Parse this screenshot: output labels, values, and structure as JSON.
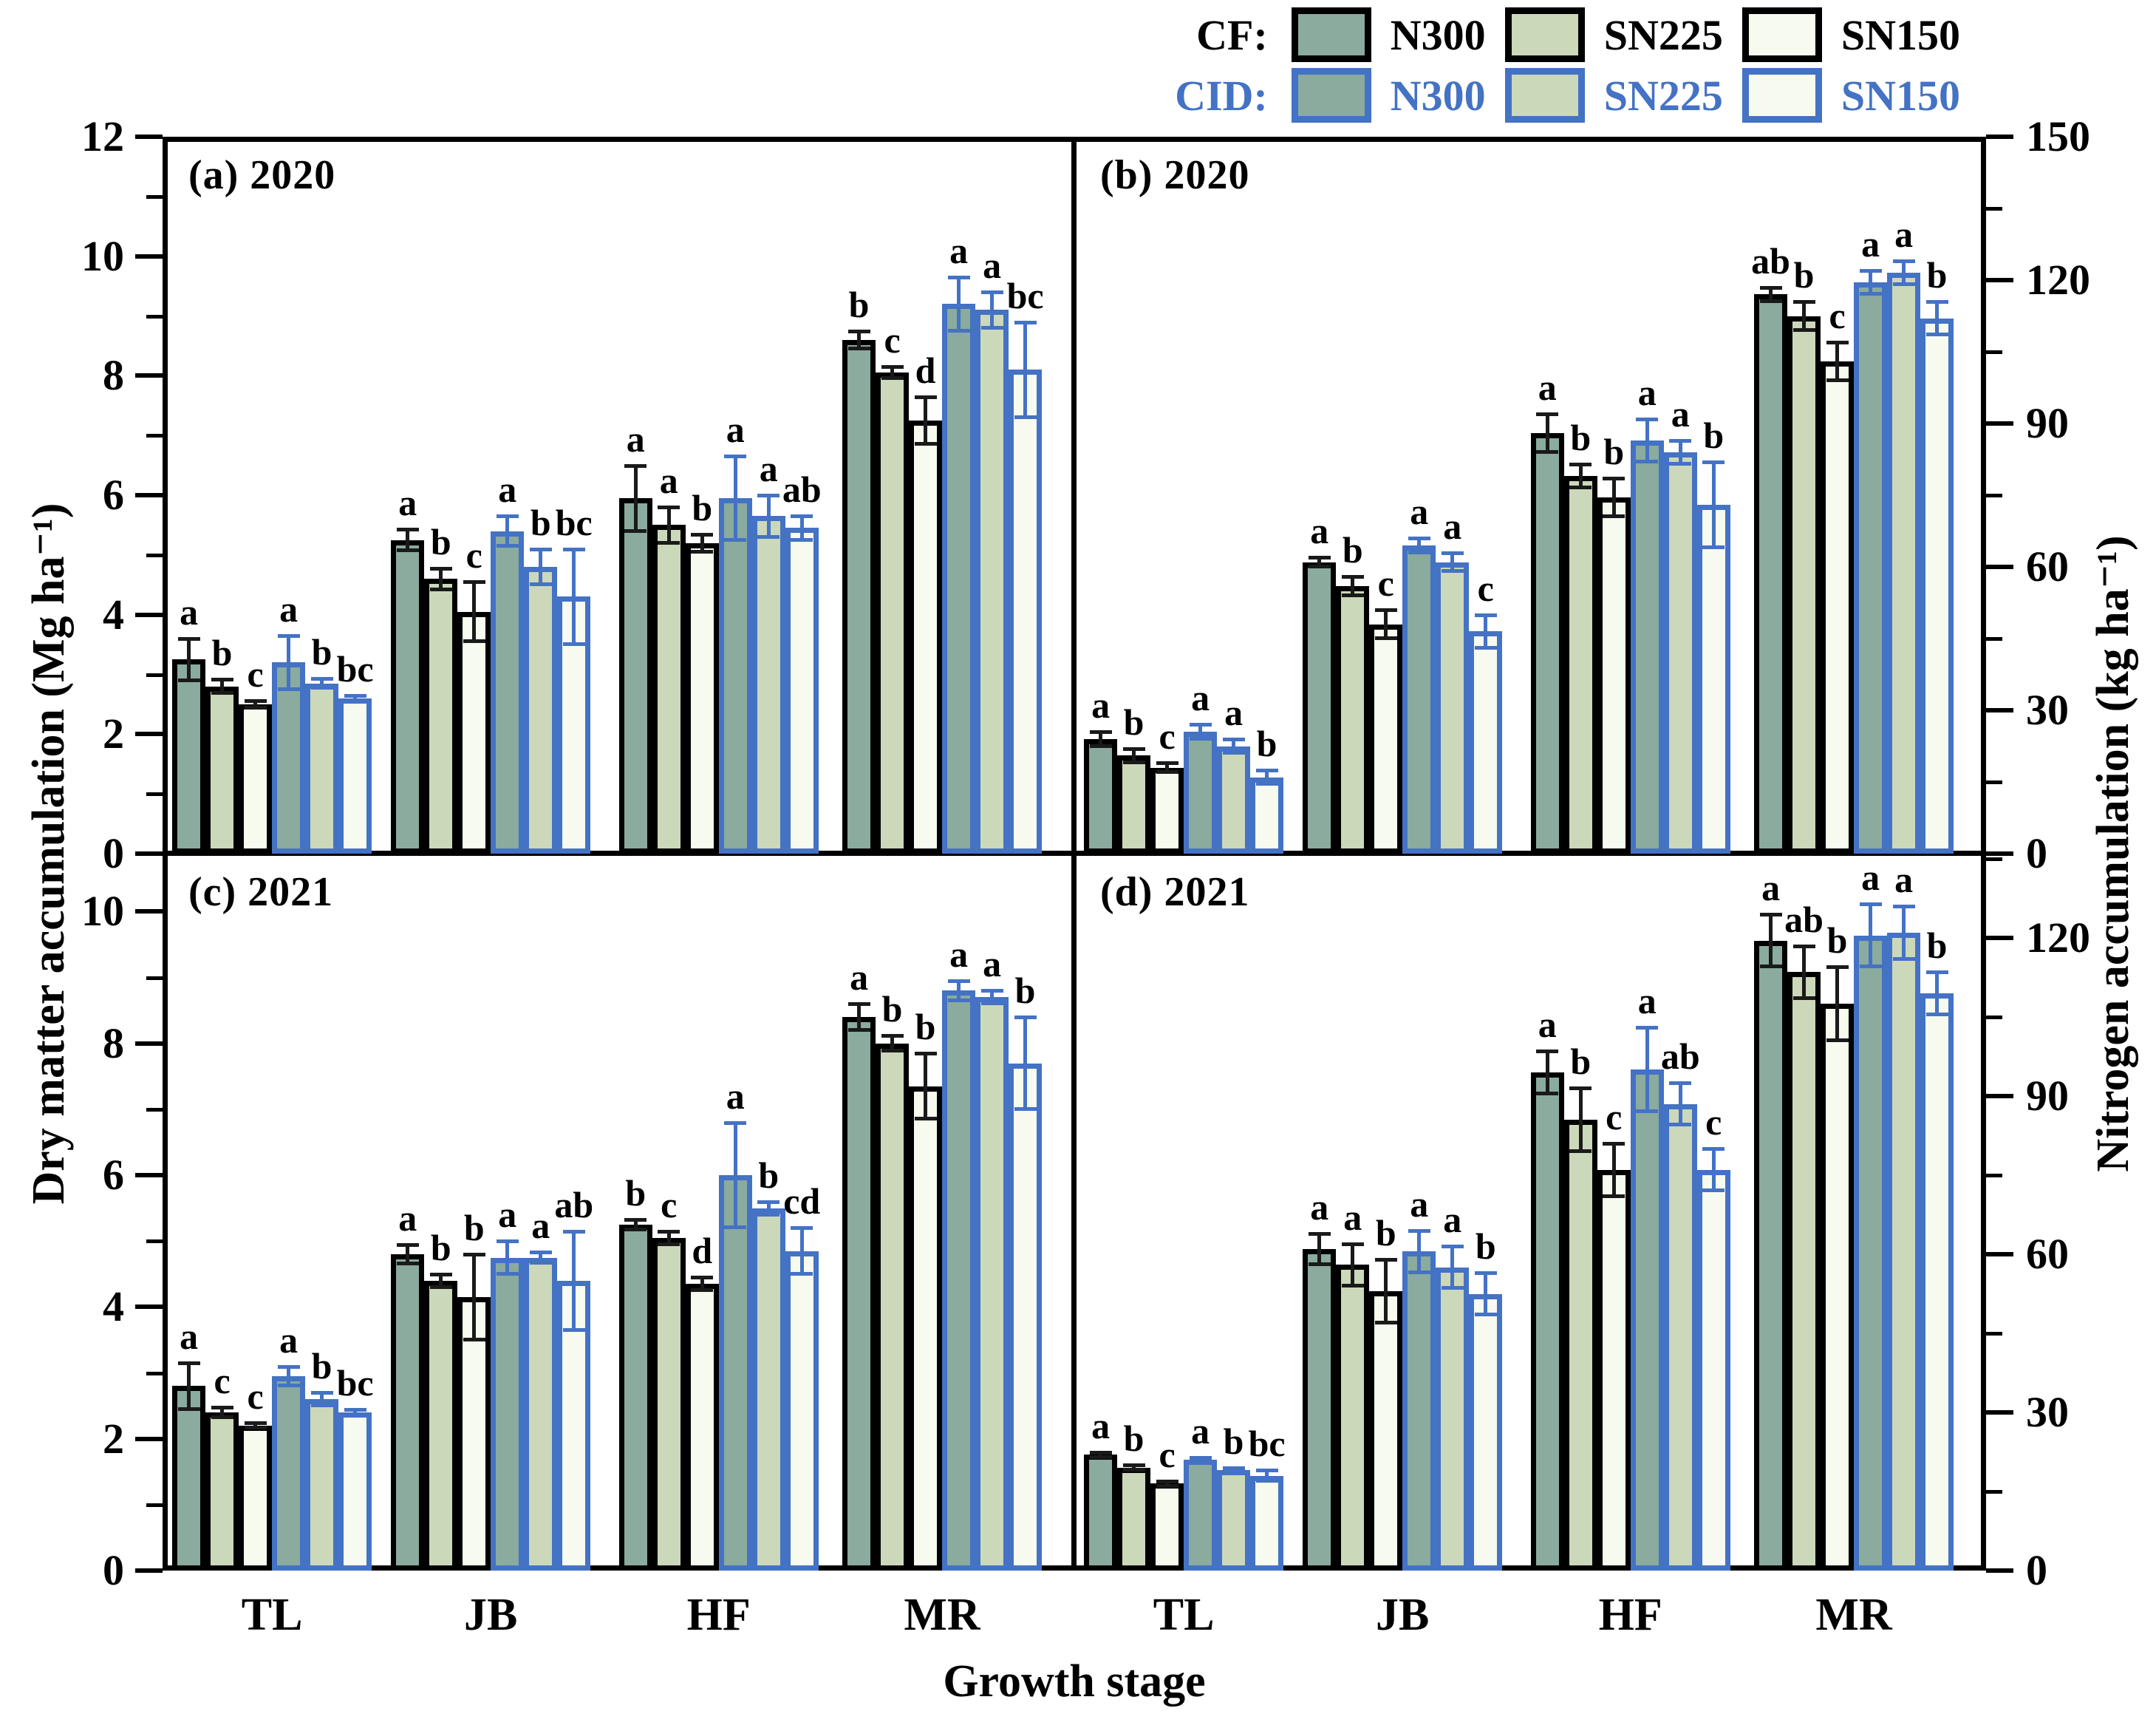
{
  "figure": {
    "background": "#ffffff"
  },
  "legend": {
    "rows": [
      {
        "label": "CF:",
        "color": "#000000",
        "border": "#000000",
        "items": [
          {
            "label": "N300",
            "fill": "#8aab9e"
          },
          {
            "label": "SN225",
            "fill": "#ccd8ba"
          },
          {
            "label": "SN150",
            "fill": "#f6faef"
          }
        ]
      },
      {
        "label": "CID:",
        "color": "#4472c4",
        "border": "#4472c4",
        "items": [
          {
            "label": "N300",
            "fill": "#8aab9e"
          },
          {
            "label": "SN225",
            "fill": "#ccd8ba"
          },
          {
            "label": "SN150",
            "fill": "#f6faef"
          }
        ]
      }
    ]
  },
  "axes": {
    "left": {
      "title": "Dry matter accumulation (Mg ha⁻¹)",
      "panels": [
        {
          "max": 12,
          "major": [
            0,
            2,
            4,
            6,
            8,
            10,
            12
          ],
          "minor": [
            1,
            3,
            5,
            7,
            9,
            11
          ]
        },
        {
          "max": 10.88,
          "major": [
            0,
            2,
            4,
            6,
            8,
            10
          ],
          "minor": [
            1,
            3,
            5,
            7,
            9
          ]
        }
      ]
    },
    "right": {
      "title": "Nitrogen accumulation (kg ha⁻¹)",
      "panels": [
        {
          "max": 150,
          "major": [
            0,
            30,
            60,
            90,
            120,
            150
          ],
          "minor": [
            15,
            45,
            75,
            105,
            135
          ]
        },
        {
          "max": 136,
          "major": [
            0,
            30,
            60,
            90,
            120
          ],
          "minor": [
            15,
            45,
            75,
            105,
            135
          ]
        }
      ]
    },
    "x": {
      "title": "Growth stage",
      "categories": [
        "TL",
        "JB",
        "HF",
        "MR"
      ]
    }
  },
  "series_styles": [
    {
      "key": "cf-n300",
      "group": "CF",
      "treatment": "N300",
      "fill": "#8aab9e",
      "border": "#000000",
      "err": "#1a1a1a"
    },
    {
      "key": "cf-sn225",
      "group": "CF",
      "treatment": "SN225",
      "fill": "#ccd8ba",
      "border": "#000000",
      "err": "#1a1a1a"
    },
    {
      "key": "cf-sn150",
      "group": "CF",
      "treatment": "SN150",
      "fill": "#f6faef",
      "border": "#000000",
      "err": "#1a1a1a"
    },
    {
      "key": "cid-n300",
      "group": "CID",
      "treatment": "N300",
      "fill": "#8aab9e",
      "border": "#4472c4",
      "err": "#4472c4"
    },
    {
      "key": "cid-sn225",
      "group": "CID",
      "treatment": "SN225",
      "fill": "#ccd8ba",
      "border": "#4472c4",
      "err": "#4472c4"
    },
    {
      "key": "cid-sn150",
      "group": "CID",
      "treatment": "SN150",
      "fill": "#f6faef",
      "border": "#4472c4",
      "err": "#4472c4"
    }
  ],
  "chart_data": [
    {
      "id": "a",
      "label": "(a) 2020",
      "type": "bar",
      "axis": "left",
      "row": 0,
      "col": 0,
      "ylabel": "Dry matter accumulation (Mg ha⁻¹)",
      "ylim": [
        0,
        12
      ],
      "categories": [
        "TL",
        "JB",
        "HF",
        "MR"
      ],
      "series": [
        {
          "name": "CF N300",
          "values": [
            3.25,
            5.25,
            5.95,
            8.6
          ],
          "errors": [
            0.35,
            0.18,
            0.55,
            0.15
          ],
          "letters": [
            "a",
            "a",
            "a",
            "b"
          ]
        },
        {
          "name": "CF SN225",
          "values": [
            2.8,
            4.6,
            5.5,
            8.05
          ],
          "errors": [
            0.12,
            0.18,
            0.3,
            0.1
          ],
          "letters": [
            "b",
            "b",
            "a",
            "c"
          ]
        },
        {
          "name": "CF SN150",
          "values": [
            2.5,
            4.05,
            5.2,
            7.25
          ],
          "errors": [
            0.06,
            0.5,
            0.15,
            0.4
          ],
          "letters": [
            "c",
            "c",
            "b",
            "d"
          ]
        },
        {
          "name": "CID N300",
          "values": [
            3.2,
            5.4,
            5.95,
            9.2
          ],
          "errors": [
            0.45,
            0.25,
            0.7,
            0.45
          ],
          "letters": [
            "a",
            "a",
            "a",
            "a"
          ]
        },
        {
          "name": "CID SN225",
          "values": [
            2.85,
            4.8,
            5.65,
            9.1
          ],
          "errors": [
            0.08,
            0.3,
            0.35,
            0.3
          ],
          "letters": [
            "b",
            "b",
            "a",
            "a"
          ]
        },
        {
          "name": "CID SN150",
          "values": [
            2.6,
            4.3,
            5.45,
            8.1
          ],
          "errors": [
            0.05,
            0.8,
            0.2,
            0.8
          ],
          "letters": [
            "bc",
            "bc",
            "ab",
            "bc"
          ]
        }
      ]
    },
    {
      "id": "b",
      "label": "(b) 2020",
      "type": "bar",
      "axis": "right",
      "row": 0,
      "col": 1,
      "ylabel": "Nitrogen accumulation (kg ha⁻¹)",
      "ylim": [
        0,
        150
      ],
      "categories": [
        "TL",
        "JB",
        "HF",
        "MR"
      ],
      "series": [
        {
          "name": "CF N300",
          "values": [
            24,
            61,
            88,
            117
          ],
          "errors": [
            1.5,
            1,
            4,
            1.5
          ],
          "letters": [
            "a",
            "a",
            "a",
            "ab"
          ]
        },
        {
          "name": "CF SN225",
          "values": [
            20.5,
            56,
            79,
            112.5
          ],
          "errors": [
            1.5,
            2,
            2.5,
            3
          ],
          "letters": [
            "b",
            "b",
            "b",
            "b"
          ]
        },
        {
          "name": "CF SN150",
          "values": [
            18,
            48,
            74.5,
            103
          ],
          "errors": [
            1,
            3,
            4,
            4
          ],
          "letters": [
            "c",
            "c",
            "b",
            "c"
          ]
        },
        {
          "name": "CID N300",
          "values": [
            25.5,
            64.5,
            86.5,
            119.5
          ],
          "errors": [
            1.5,
            1.5,
            4.5,
            2.5
          ],
          "letters": [
            "a",
            "a",
            "a",
            "a"
          ]
        },
        {
          "name": "CID SN225",
          "values": [
            22.5,
            61,
            84,
            121.5
          ],
          "errors": [
            1.5,
            2,
            2.5,
            2.5
          ],
          "letters": [
            "a",
            "a",
            "a",
            "a"
          ]
        },
        {
          "name": "CID SN150",
          "values": [
            16,
            46.5,
            73,
            112
          ],
          "errors": [
            1.5,
            3.5,
            9,
            3.5
          ],
          "letters": [
            "b",
            "c",
            "b",
            "b"
          ]
        }
      ]
    },
    {
      "id": "c",
      "label": "(c) 2021",
      "type": "bar",
      "axis": "left",
      "row": 1,
      "col": 0,
      "ylabel": "Dry matter accumulation (Mg ha⁻¹)",
      "ylim": [
        0,
        10.88
      ],
      "categories": [
        "TL",
        "JB",
        "HF",
        "MR"
      ],
      "series": [
        {
          "name": "CF N300",
          "values": [
            2.8,
            4.8,
            5.25,
            8.4
          ],
          "errors": [
            0.35,
            0.15,
            0.08,
            0.2
          ],
          "letters": [
            "a",
            "a",
            "b",
            "a"
          ]
        },
        {
          "name": "CF SN225",
          "values": [
            2.4,
            4.4,
            5.05,
            8.0
          ],
          "errors": [
            0.08,
            0.1,
            0.1,
            0.12
          ],
          "letters": [
            "c",
            "b",
            "c",
            "b"
          ]
        },
        {
          "name": "CF SN150",
          "values": [
            2.2,
            4.15,
            4.35,
            7.35
          ],
          "errors": [
            0.04,
            0.65,
            0.1,
            0.5
          ],
          "letters": [
            "c",
            "b",
            "d",
            "b"
          ]
        },
        {
          "name": "CID N300",
          "values": [
            2.95,
            4.75,
            6.0,
            8.8
          ],
          "errors": [
            0.15,
            0.25,
            0.8,
            0.15
          ],
          "letters": [
            "a",
            "a",
            "a",
            "a"
          ]
        },
        {
          "name": "CID SN225",
          "values": [
            2.6,
            4.75,
            5.5,
            8.7
          ],
          "errors": [
            0.1,
            0.08,
            0.1,
            0.1
          ],
          "letters": [
            "b",
            "a",
            "b",
            "a"
          ]
        },
        {
          "name": "CID SN150",
          "values": [
            2.4,
            4.4,
            4.85,
            7.7
          ],
          "errors": [
            0.05,
            0.75,
            0.35,
            0.7
          ],
          "letters": [
            "bc",
            "ab",
            "cd",
            "b"
          ]
        }
      ]
    },
    {
      "id": "d",
      "label": "(d) 2021",
      "type": "bar",
      "axis": "right",
      "row": 1,
      "col": 1,
      "ylabel": "Nitrogen accumulation (kg ha⁻¹)",
      "ylim": [
        0,
        136
      ],
      "categories": [
        "TL",
        "JB",
        "HF",
        "MR"
      ],
      "series": [
        {
          "name": "CF N300",
          "values": [
            22,
            61,
            94.5,
            119.5
          ],
          "errors": [
            0.5,
            3,
            4,
            5
          ],
          "letters": [
            "a",
            "a",
            "a",
            "a"
          ]
        },
        {
          "name": "CF SN225",
          "values": [
            19.5,
            58,
            85.5,
            113.5
          ],
          "errors": [
            0.5,
            4,
            6,
            5
          ],
          "letters": [
            "b",
            "a",
            "b",
            "ab"
          ]
        },
        {
          "name": "CF SN150",
          "values": [
            16.5,
            53,
            76,
            107.5
          ],
          "errors": [
            0.5,
            6,
            5,
            7
          ],
          "letters": [
            "c",
            "b",
            "c",
            "b"
          ]
        },
        {
          "name": "CID N300",
          "values": [
            21,
            60.5,
            95,
            120.5
          ],
          "errors": [
            0.5,
            4,
            8,
            6
          ],
          "letters": [
            "a",
            "a",
            "a",
            "a"
          ]
        },
        {
          "name": "CID SN225",
          "values": [
            19,
            57.5,
            88.5,
            121
          ],
          "errors": [
            0.5,
            4,
            4,
            5
          ],
          "letters": [
            "b",
            "a",
            "ab",
            "a"
          ]
        },
        {
          "name": "CID SN150",
          "values": [
            18,
            52.5,
            76,
            109.5
          ],
          "errors": [
            1,
            4,
            4,
            4
          ],
          "letters": [
            "bc",
            "b",
            "c",
            "b"
          ]
        }
      ]
    }
  ]
}
